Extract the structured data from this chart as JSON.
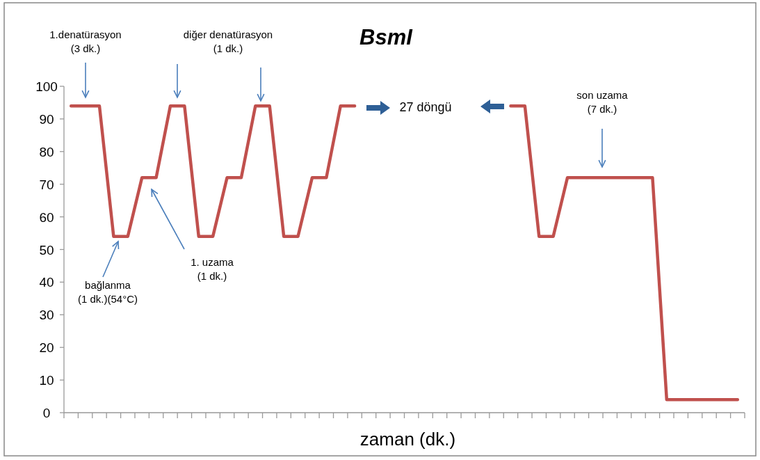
{
  "chart_data": {
    "type": "line",
    "title": "BsmI",
    "xlabel": "zaman (dk.)",
    "categories": [
      null,
      null,
      null,
      null,
      null,
      null,
      null,
      null,
      null,
      null,
      null,
      null,
      null,
      null,
      null,
      null,
      null,
      null,
      null,
      null,
      null,
      null,
      null,
      null,
      null,
      null,
      null,
      null,
      null,
      null,
      null,
      null,
      null,
      null,
      null,
      null,
      null,
      null,
      null,
      null,
      null,
      null,
      null,
      null,
      null,
      null,
      null,
      null
    ],
    "values": [
      94,
      94,
      94,
      54,
      54,
      72,
      72,
      94,
      94,
      54,
      54,
      72,
      72,
      94,
      94,
      54,
      54,
      72,
      72,
      94,
      94,
      null,
      null,
      null,
      null,
      null,
      null,
      null,
      null,
      null,
      null,
      94,
      94,
      54,
      54,
      72,
      72,
      72,
      72,
      72,
      72,
      72,
      4,
      4,
      4,
      4,
      4,
      4
    ],
    "color": "#c0504d",
    "ylim": [
      0,
      100
    ],
    "yticks": [
      0,
      10,
      20,
      30,
      40,
      50,
      60,
      70,
      80,
      90,
      100
    ],
    "annotations": [
      "1.denatürasyon\n(3 dk.)",
      "diğer denatürasyon\n(1 dk.)",
      "bağlanma\n(1 dk.)(54°C)",
      "1. uzama\n(1 dk.)",
      "27 döngü",
      "son uzama\n(7 dk.)"
    ]
  }
}
